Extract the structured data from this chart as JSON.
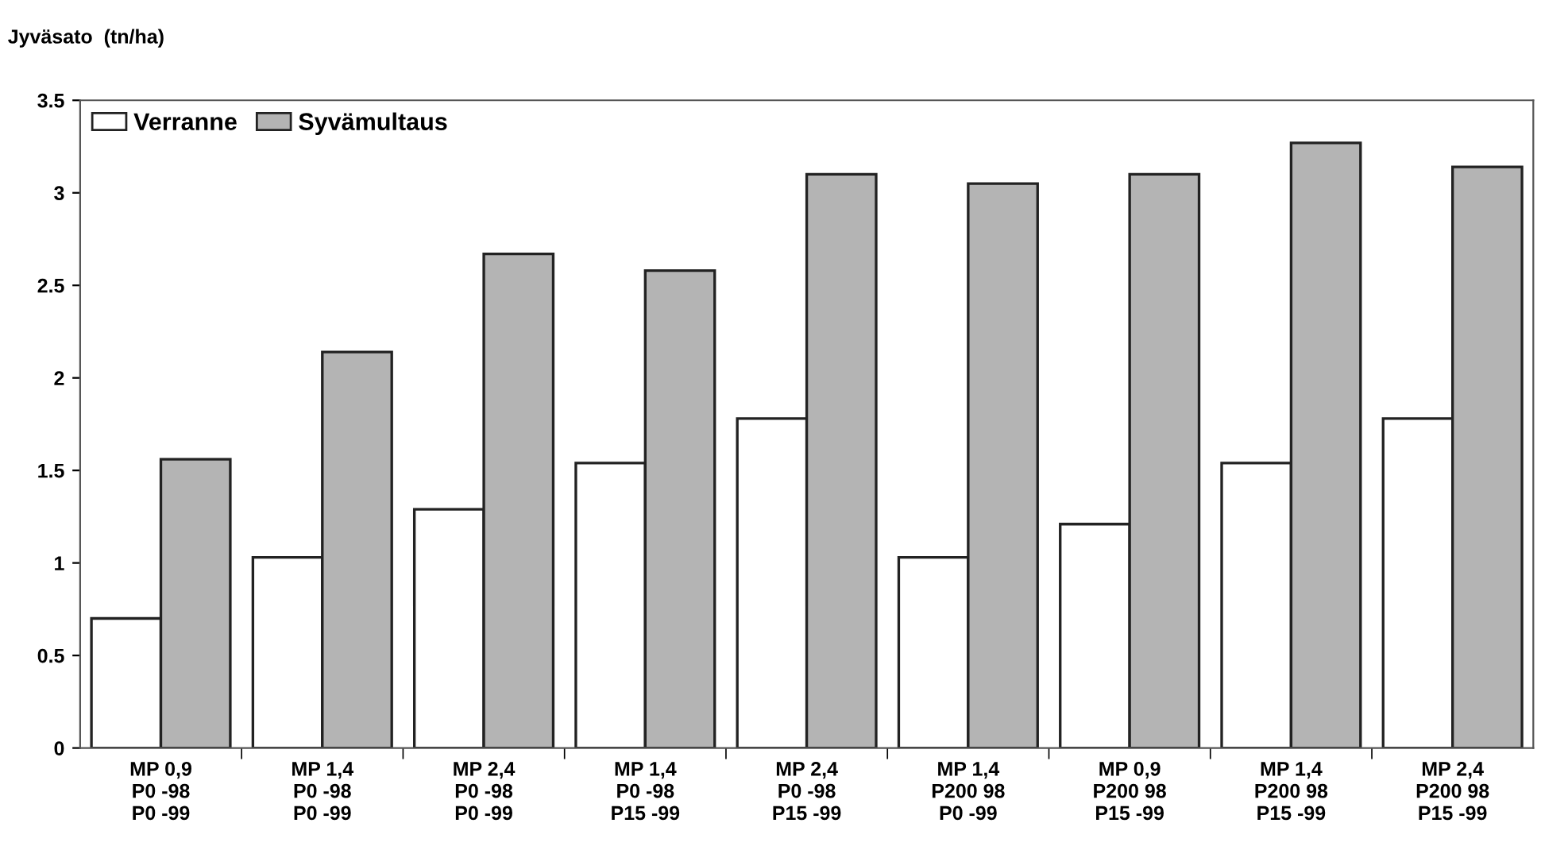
{
  "chart_data": {
    "type": "bar",
    "ylabel": "Jyväsato  (tn/ha)",
    "categories": [
      "MP 0,9\nP0 -98\nP0 -99",
      "MP 1,4\nP0 -98\nP0 -99",
      "MP 2,4\nP0 -98\nP0 -99",
      "MP 1,4\nP0 -98\nP15 -99",
      "MP 2,4\nP0 -98\nP15 -99",
      "MP 1,4\nP200 98\nP0 -99",
      "MP 0,9\nP200 98\nP15 -99",
      "MP 1,4\nP200 98\nP15 -99",
      "MP 2,4\nP200 98\nP15 -99"
    ],
    "series": [
      {
        "name": "Verranne",
        "color": "#ffffff",
        "values": [
          0.7,
          1.03,
          1.29,
          1.54,
          1.78,
          1.03,
          1.21,
          1.54,
          1.78
        ]
      },
      {
        "name": "Syvämultaus",
        "color": "#b4b4b4",
        "values": [
          1.56,
          2.14,
          2.67,
          2.58,
          3.1,
          3.05,
          3.1,
          3.27,
          3.14
        ]
      }
    ],
    "ylim": [
      0,
      3.5
    ],
    "yticks": [
      0,
      0.5,
      1,
      1.5,
      2,
      2.5,
      3,
      3.5
    ],
    "grid": false,
    "legend": "top left"
  }
}
